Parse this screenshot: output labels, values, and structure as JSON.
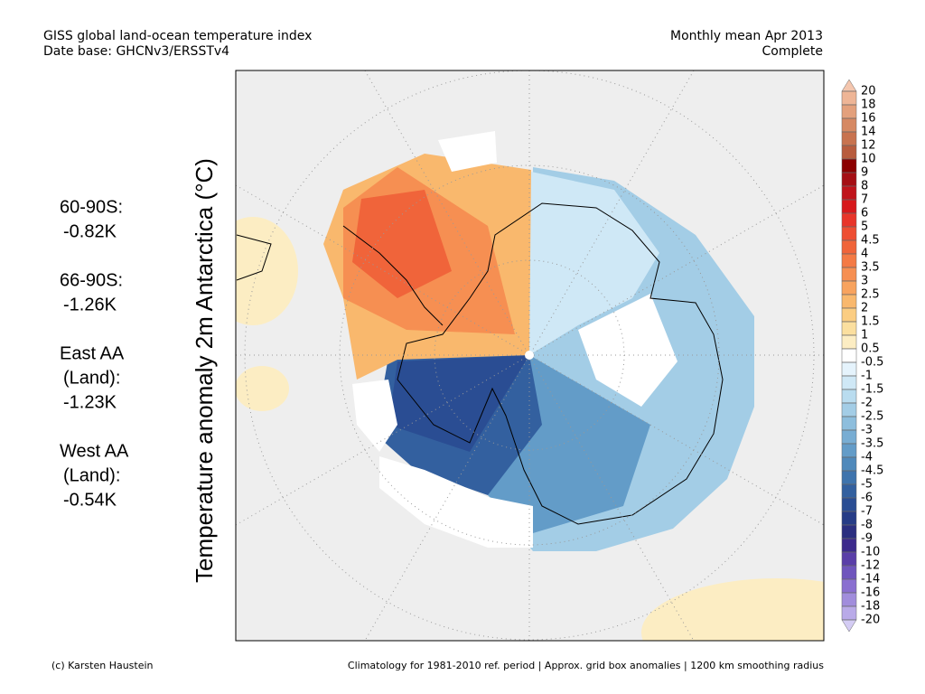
{
  "header": {
    "left": [
      "GISS global land-ocean temperature index",
      "Date base: GHCNv3/ERSSTv4"
    ],
    "right": [
      "Monthly mean Apr 2013",
      "Complete"
    ]
  },
  "stats": [
    [
      "60-90S:",
      "-0.82K"
    ],
    [
      "66-90S:",
      "-1.26K"
    ],
    [
      "East AA",
      "(Land):",
      "-1.23K"
    ],
    [
      "West AA",
      "(Land):",
      "-0.54K"
    ]
  ],
  "axis_label": "Temperature anomaly 2m Antarctica (°C)",
  "colorbar": {
    "levels": [
      20,
      18,
      16,
      14,
      12,
      10,
      9,
      8,
      7,
      6,
      5,
      4.5,
      4,
      3.5,
      3,
      2.5,
      2,
      1.5,
      1,
      0.5,
      -0.5,
      -1,
      -1.5,
      -2,
      -2.5,
      -3,
      -3.5,
      -4,
      -4.5,
      -5,
      -6,
      -7,
      -8,
      -9,
      -10,
      -12,
      -14,
      -16,
      -18,
      -20
    ],
    "colors": [
      "#f4c6ae",
      "#eeb596",
      "#e3a07c",
      "#d68963",
      "#c8734f",
      "#b85c3e",
      "#8b0000",
      "#a50f15",
      "#c0141c",
      "#d7191c",
      "#e8352a",
      "#ee4e32",
      "#f0643a",
      "#f47a45",
      "#f68f52",
      "#f8a35e",
      "#f9b86d",
      "#fbcd82",
      "#fbdf9f",
      "#fcedc3",
      "#ffffff",
      "#e5f3fc",
      "#cfe8f6",
      "#b9dcef",
      "#a3cde6",
      "#8dbedd",
      "#78add3",
      "#639cc8",
      "#4f89bb",
      "#3f74ad",
      "#33609f",
      "#2a4d93",
      "#263c86",
      "#2b2f80",
      "#3c2a8c",
      "#5a3ea8",
      "#6f55bd",
      "#8a6fd0",
      "#a18ddc",
      "#b9aae8",
      "#d4ccf4"
    ]
  },
  "footer": {
    "left": "(c) Karsten Haustein",
    "right": "Climatology for 1981-2010 ref. period | Approx. grid box anomalies | 1200 km smoothing radius"
  }
}
